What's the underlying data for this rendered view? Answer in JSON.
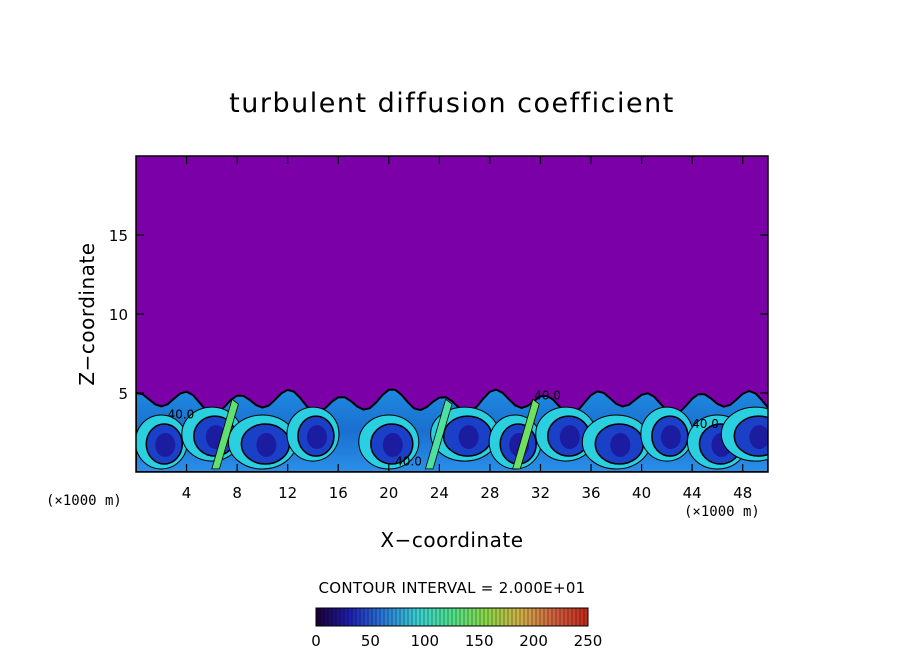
{
  "chart_data": {
    "type": "heatmap",
    "title": "turbulent diffusion coefficient",
    "xlabel": "X−coordinate",
    "ylabel": "Z−coordinate",
    "x_unit_left": "(×1000 m)",
    "x_unit_right": "(×1000 m)",
    "xlim": [
      0,
      50
    ],
    "ylim": [
      0,
      20
    ],
    "x_ticks": [
      4,
      8,
      12,
      16,
      20,
      24,
      28,
      32,
      36,
      40,
      44,
      48
    ],
    "y_ticks": [
      5,
      10,
      15
    ],
    "contour_interval_text": "CONTOUR INTERVAL = 2.000E+01",
    "contour_labels": [
      "40.0",
      "40.0",
      "40.0",
      "40.0"
    ],
    "colorbar": {
      "min": 0,
      "max": 250,
      "ticks": [
        0,
        50,
        100,
        150,
        200,
        250
      ],
      "colors": [
        "#1a0033",
        "#1f1fb0",
        "#2a7ad8",
        "#3ad0d0",
        "#4fe08a",
        "#8ad848",
        "#d0b048",
        "#d06040",
        "#c02818"
      ]
    },
    "field": {
      "background_value": 0,
      "background_color": "#7b00a8",
      "boundary_layer_top": 5.2,
      "eddy_centers_x": [
        2,
        6,
        10,
        14,
        20,
        26,
        30,
        34,
        38,
        42,
        46,
        49
      ]
    }
  }
}
